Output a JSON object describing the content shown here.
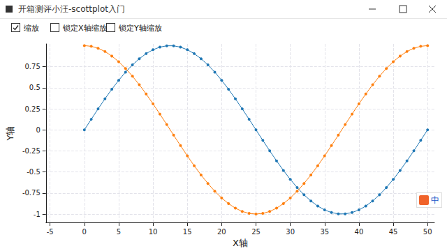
{
  "window": {
    "title": "开箱测评小汪-scottplot入门",
    "checkboxes": [
      {
        "label": "缩放",
        "checked": true
      },
      {
        "label": "锁定X轴缩放",
        "checked": false
      },
      {
        "label": "锁定Y轴缩放",
        "checked": false
      }
    ]
  },
  "ime_indicator": "中",
  "chart_data": {
    "type": "line",
    "xlabel": "X轴",
    "ylabel": "Y轴",
    "x": [
      0,
      1,
      2,
      3,
      4,
      5,
      6,
      7,
      8,
      9,
      10,
      11,
      12,
      13,
      14,
      15,
      16,
      17,
      18,
      19,
      20,
      21,
      22,
      23,
      24,
      25,
      26,
      27,
      28,
      29,
      30,
      31,
      32,
      33,
      34,
      35,
      36,
      37,
      38,
      39,
      40,
      41,
      42,
      43,
      44,
      45,
      46,
      47,
      48,
      49,
      50
    ],
    "series": [
      {
        "color": "#1f77b4",
        "marker": "circle",
        "values": [
          0,
          0.125,
          0.249,
          0.368,
          0.482,
          0.588,
          0.685,
          0.771,
          0.844,
          0.905,
          0.951,
          0.982,
          0.998,
          0.998,
          0.982,
          0.951,
          0.905,
          0.844,
          0.771,
          0.685,
          0.588,
          0.482,
          0.368,
          0.249,
          0.125,
          0,
          -0.125,
          -0.249,
          -0.368,
          -0.482,
          -0.588,
          -0.685,
          -0.771,
          -0.844,
          -0.905,
          -0.951,
          -0.982,
          -0.998,
          -0.998,
          -0.982,
          -0.951,
          -0.905,
          -0.844,
          -0.771,
          -0.685,
          -0.588,
          -0.482,
          -0.368,
          -0.249,
          -0.125,
          0
        ]
      },
      {
        "color": "#ff7f0e",
        "marker": "circle",
        "values": [
          1,
          0.992,
          0.969,
          0.93,
          0.876,
          0.809,
          0.729,
          0.637,
          0.536,
          0.426,
          0.309,
          0.187,
          0.063,
          -0.063,
          -0.187,
          -0.309,
          -0.426,
          -0.536,
          -0.637,
          -0.729,
          -0.809,
          -0.876,
          -0.93,
          -0.969,
          -0.992,
          -1,
          -0.992,
          -0.969,
          -0.93,
          -0.876,
          -0.809,
          -0.729,
          -0.637,
          -0.536,
          -0.426,
          -0.309,
          -0.187,
          -0.063,
          0.063,
          0.187,
          0.309,
          0.426,
          0.536,
          0.637,
          0.729,
          0.809,
          0.876,
          0.93,
          0.969,
          0.992,
          1
        ]
      }
    ],
    "xlim": [
      -5.6,
      51
    ],
    "xticks": [
      -5,
      0,
      5,
      10,
      15,
      20,
      25,
      30,
      35,
      40,
      45,
      50
    ],
    "ylim": [
      -1.1,
      1.02
    ],
    "yticks": [
      -1,
      -0.75,
      -0.5,
      -0.25,
      0,
      0.25,
      0.5,
      0.75
    ],
    "grid": true
  }
}
